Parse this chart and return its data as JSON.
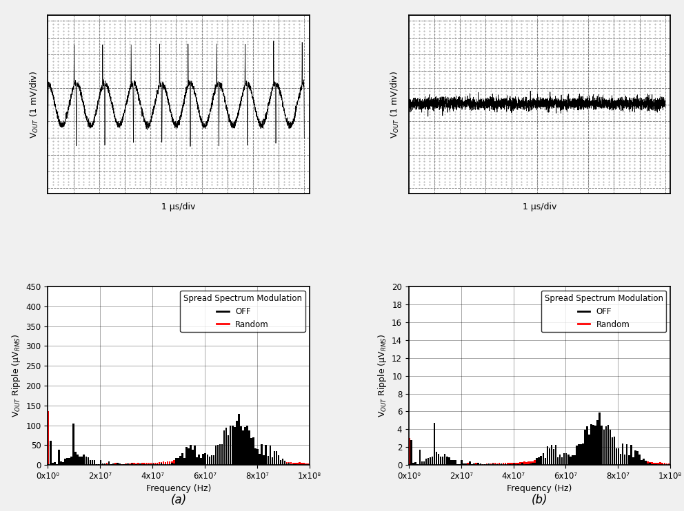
{
  "fig_width": 9.92,
  "fig_height": 7.42,
  "background_color": "#f0f0f0",
  "osc_a": {
    "ylabel": "V$_{OUT}$ (1 mV/div)",
    "xlabel": "1 μs/div",
    "num_cycles": 9,
    "amplitude": 0.38,
    "spike_down_amp": 1.1,
    "spike_up_amp": 0.75,
    "noise_amplitude": 0.03
  },
  "osc_b": {
    "ylabel": "V$_{OUT}$ (1 mV/div)",
    "xlabel": "1 μs/div",
    "noise_amplitude": 0.055
  },
  "spectrum_a": {
    "ylabel": "V$_{OUT}$ Ripple (μV$_{RMS}$)",
    "xlabel": "Frequency (Hz)",
    "legend_title": "Spread Spectrum Modulation",
    "legend_off": "OFF",
    "legend_random": "Random",
    "xlim": [
      0,
      100000000.0
    ],
    "ylim": [
      0,
      450
    ],
    "yticks": [
      0,
      50,
      100,
      150,
      200,
      250,
      300,
      350,
      400,
      450
    ],
    "xticks": [
      0,
      20000000.0,
      40000000.0,
      60000000.0,
      80000000.0,
      100000000.0
    ],
    "xticklabels": [
      "0x10⁰",
      "2x10⁷",
      "4x10⁷",
      "6x10⁷",
      "8x10⁷",
      "1x10⁸"
    ]
  },
  "spectrum_b": {
    "ylabel": "V$_{OUT}$ Ripple (μV$_{RMS}$)",
    "xlabel": "Frequency (Hz)",
    "legend_title": "Spread Spectrum Modulation",
    "legend_off": "OFF",
    "legend_random": "Random",
    "xlim": [
      0,
      100000000.0
    ],
    "ylim": [
      0,
      20
    ],
    "yticks": [
      0,
      2,
      4,
      6,
      8,
      10,
      12,
      14,
      16,
      18,
      20
    ],
    "xticks": [
      0,
      20000000.0,
      40000000.0,
      60000000.0,
      80000000.0,
      100000000.0
    ],
    "xticklabels": [
      "0x10⁰",
      "2x10⁷",
      "4x10⁷",
      "6x10⁷",
      "8x10⁷",
      "1x10⁸"
    ]
  },
  "label_a": "(a)",
  "label_b": "(b)"
}
